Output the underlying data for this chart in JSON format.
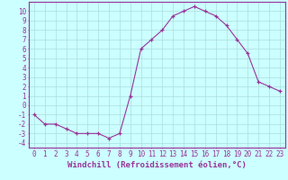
{
  "x": [
    0,
    1,
    2,
    3,
    4,
    5,
    6,
    7,
    8,
    9,
    10,
    11,
    12,
    13,
    14,
    15,
    16,
    17,
    18,
    19,
    20,
    21,
    22,
    23
  ],
  "y": [
    -1.0,
    -2.0,
    -2.0,
    -2.5,
    -3.0,
    -3.0,
    -3.0,
    -3.5,
    -3.0,
    1.0,
    6.0,
    7.0,
    8.0,
    9.5,
    10.0,
    10.5,
    10.0,
    9.5,
    8.5,
    7.0,
    5.5,
    2.5,
    2.0,
    1.5
  ],
  "line_color": "#993399",
  "marker": "+",
  "marker_size": 3,
  "background_color": "#ccffff",
  "grid_color": "#aadddd",
  "xlabel": "Windchill (Refroidissement éolien,°C)",
  "xlim": [
    -0.5,
    23.5
  ],
  "ylim": [
    -4.5,
    11.0
  ],
  "xticks": [
    0,
    1,
    2,
    3,
    4,
    5,
    6,
    7,
    8,
    9,
    10,
    11,
    12,
    13,
    14,
    15,
    16,
    17,
    18,
    19,
    20,
    21,
    22,
    23
  ],
  "yticks": [
    10,
    9,
    8,
    7,
    6,
    5,
    4,
    3,
    2,
    1,
    0,
    -1,
    -2,
    -3,
    -4
  ],
  "spine_color": "#993399",
  "tick_color": "#993399",
  "label_color": "#993399",
  "font_size": 5.5,
  "xlabel_fontsize": 6.5
}
